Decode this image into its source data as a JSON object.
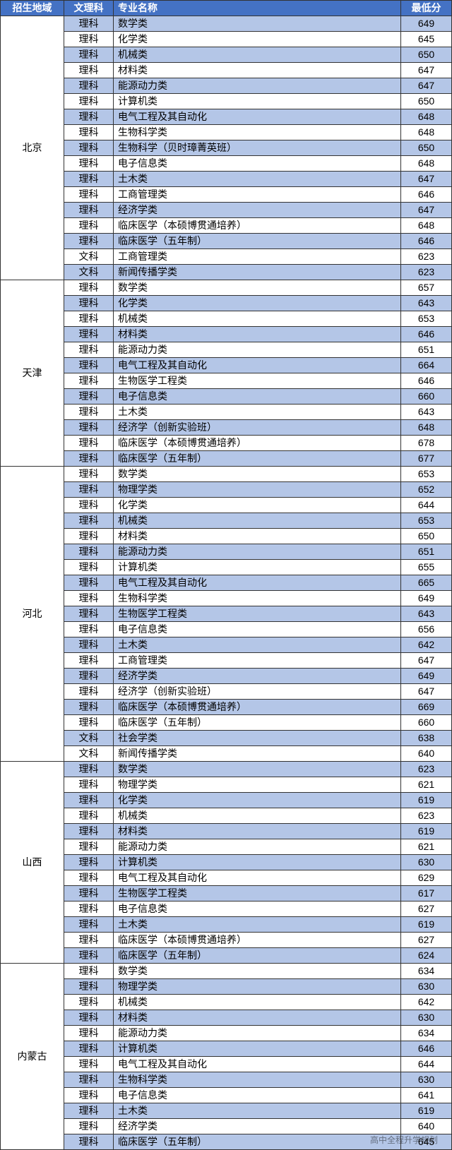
{
  "watermark": "高中全程升学规划",
  "header": {
    "c1": "招生地域",
    "c2": "文理科",
    "c3": "专业名称",
    "c4": "最低分"
  },
  "groups": [
    {
      "region": "北京",
      "rows": [
        {
          "s": "理科",
          "m": "数学类",
          "p": 649
        },
        {
          "s": "理科",
          "m": "化学类",
          "p": 645
        },
        {
          "s": "理科",
          "m": "机械类",
          "p": 650
        },
        {
          "s": "理科",
          "m": "材料类",
          "p": 647
        },
        {
          "s": "理科",
          "m": "能源动力类",
          "p": 647
        },
        {
          "s": "理科",
          "m": "计算机类",
          "p": 650
        },
        {
          "s": "理科",
          "m": "电气工程及其自动化",
          "p": 648
        },
        {
          "s": "理科",
          "m": "生物科学类",
          "p": 648
        },
        {
          "s": "理科",
          "m": "生物科学（贝时璋菁英班）",
          "p": 650
        },
        {
          "s": "理科",
          "m": "电子信息类",
          "p": 648
        },
        {
          "s": "理科",
          "m": "土木类",
          "p": 647
        },
        {
          "s": "理科",
          "m": "工商管理类",
          "p": 646
        },
        {
          "s": "理科",
          "m": "经济学类",
          "p": 647
        },
        {
          "s": "理科",
          "m": "临床医学（本硕博贯通培养）",
          "p": 648
        },
        {
          "s": "理科",
          "m": "临床医学（五年制）",
          "p": 646
        },
        {
          "s": "文科",
          "m": "工商管理类",
          "p": 623
        },
        {
          "s": "文科",
          "m": "新闻传播学类",
          "p": 623
        }
      ]
    },
    {
      "region": "天津",
      "rows": [
        {
          "s": "理科",
          "m": "数学类",
          "p": 657
        },
        {
          "s": "理科",
          "m": "化学类",
          "p": 643
        },
        {
          "s": "理科",
          "m": "机械类",
          "p": 653
        },
        {
          "s": "理科",
          "m": "材料类",
          "p": 646
        },
        {
          "s": "理科",
          "m": "能源动力类",
          "p": 651
        },
        {
          "s": "理科",
          "m": "电气工程及其自动化",
          "p": 664
        },
        {
          "s": "理科",
          "m": "生物医学工程类",
          "p": 646
        },
        {
          "s": "理科",
          "m": "电子信息类",
          "p": 660
        },
        {
          "s": "理科",
          "m": "土木类",
          "p": 643
        },
        {
          "s": "理科",
          "m": "经济学（创新实验班）",
          "p": 648
        },
        {
          "s": "理科",
          "m": "临床医学（本硕博贯通培养）",
          "p": 678
        },
        {
          "s": "理科",
          "m": "临床医学（五年制）",
          "p": 677
        }
      ]
    },
    {
      "region": "河北",
      "rows": [
        {
          "s": "理科",
          "m": "数学类",
          "p": 653
        },
        {
          "s": "理科",
          "m": "物理学类",
          "p": 652
        },
        {
          "s": "理科",
          "m": "化学类",
          "p": 644
        },
        {
          "s": "理科",
          "m": "机械类",
          "p": 653
        },
        {
          "s": "理科",
          "m": "材料类",
          "p": 650
        },
        {
          "s": "理科",
          "m": "能源动力类",
          "p": 651
        },
        {
          "s": "理科",
          "m": "计算机类",
          "p": 655
        },
        {
          "s": "理科",
          "m": "电气工程及其自动化",
          "p": 665
        },
        {
          "s": "理科",
          "m": "生物科学类",
          "p": 649
        },
        {
          "s": "理科",
          "m": "生物医学工程类",
          "p": 643
        },
        {
          "s": "理科",
          "m": "电子信息类",
          "p": 656
        },
        {
          "s": "理科",
          "m": "土木类",
          "p": 642
        },
        {
          "s": "理科",
          "m": "工商管理类",
          "p": 647
        },
        {
          "s": "理科",
          "m": "经济学类",
          "p": 649
        },
        {
          "s": "理科",
          "m": "经济学（创新实验班）",
          "p": 647
        },
        {
          "s": "理科",
          "m": "临床医学（本硕博贯通培养）",
          "p": 669
        },
        {
          "s": "理科",
          "m": "临床医学（五年制）",
          "p": 660
        },
        {
          "s": "文科",
          "m": "社会学类",
          "p": 638
        },
        {
          "s": "文科",
          "m": "新闻传播学类",
          "p": 640
        }
      ]
    },
    {
      "region": "山西",
      "rows": [
        {
          "s": "理科",
          "m": "数学类",
          "p": 623
        },
        {
          "s": "理科",
          "m": "物理学类",
          "p": 621
        },
        {
          "s": "理科",
          "m": "化学类",
          "p": 619
        },
        {
          "s": "理科",
          "m": "机械类",
          "p": 623
        },
        {
          "s": "理科",
          "m": "材料类",
          "p": 619
        },
        {
          "s": "理科",
          "m": "能源动力类",
          "p": 621
        },
        {
          "s": "理科",
          "m": "计算机类",
          "p": 630
        },
        {
          "s": "理科",
          "m": "电气工程及其自动化",
          "p": 629
        },
        {
          "s": "理科",
          "m": "生物医学工程类",
          "p": 617
        },
        {
          "s": "理科",
          "m": "电子信息类",
          "p": 627
        },
        {
          "s": "理科",
          "m": "土木类",
          "p": 619
        },
        {
          "s": "理科",
          "m": "临床医学（本硕博贯通培养）",
          "p": 627
        },
        {
          "s": "理科",
          "m": "临床医学（五年制）",
          "p": 624
        }
      ]
    },
    {
      "region": "内蒙古",
      "rows": [
        {
          "s": "理科",
          "m": "数学类",
          "p": 634
        },
        {
          "s": "理科",
          "m": "物理学类",
          "p": 630
        },
        {
          "s": "理科",
          "m": "机械类",
          "p": 642
        },
        {
          "s": "理科",
          "m": "材料类",
          "p": 630
        },
        {
          "s": "理科",
          "m": "能源动力类",
          "p": 634
        },
        {
          "s": "理科",
          "m": "计算机类",
          "p": 646
        },
        {
          "s": "理科",
          "m": "电气工程及其自动化",
          "p": 644
        },
        {
          "s": "理科",
          "m": "生物科学类",
          "p": 630
        },
        {
          "s": "理科",
          "m": "电子信息类",
          "p": 641
        },
        {
          "s": "理科",
          "m": "土木类",
          "p": 619
        },
        {
          "s": "理科",
          "m": "经济学类",
          "p": 640
        },
        {
          "s": "理科",
          "m": "临床医学（五年制）",
          "p": 645
        }
      ]
    }
  ]
}
